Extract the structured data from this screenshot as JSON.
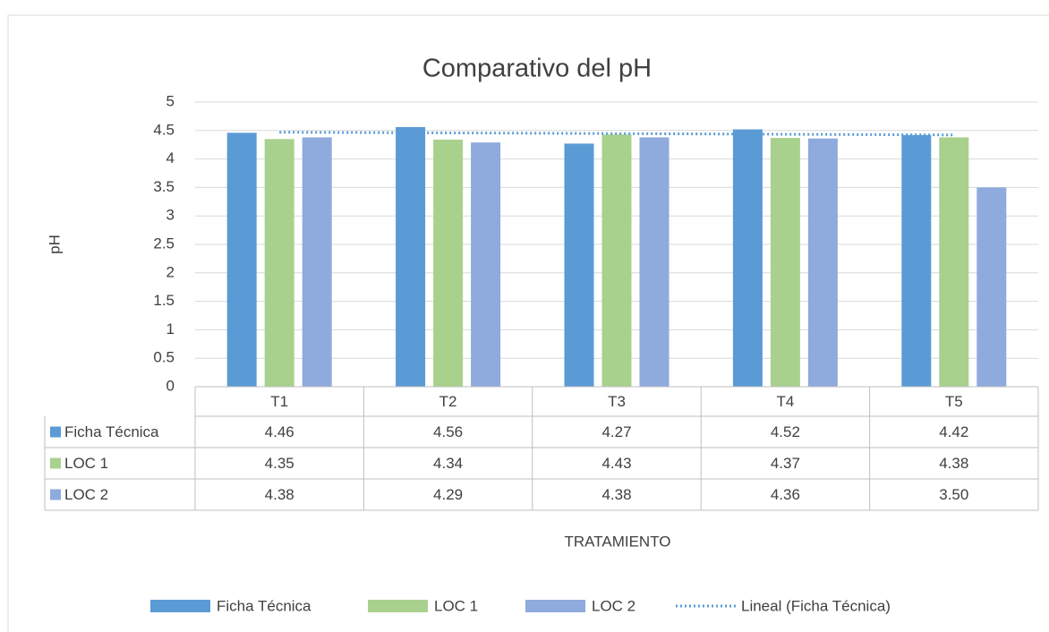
{
  "chart_data": {
    "type": "bar",
    "title": "Comparativo del pH",
    "y_label": "pH",
    "x_label": "TRATAMIENTO",
    "categories": [
      "T1",
      "T2",
      "T3",
      "T4",
      "T5"
    ],
    "series": [
      {
        "name": "Ficha Técnica",
        "color": "#5b9bd5",
        "values": [
          4.46,
          4.56,
          4.27,
          4.52,
          4.42
        ],
        "value_labels": [
          "4.46",
          "4.56",
          "4.27",
          "4.52",
          "4.42"
        ]
      },
      {
        "name": "LOC 1",
        "color": "#a9d18e",
        "values": [
          4.35,
          4.34,
          4.43,
          4.37,
          4.38
        ],
        "value_labels": [
          "4.35",
          "4.34",
          "4.43",
          "4.37",
          "4.38"
        ]
      },
      {
        "name": "LOC 2",
        "color": "#8faadc",
        "values": [
          4.38,
          4.29,
          4.38,
          4.36,
          3.5
        ],
        "value_labels": [
          "4.38",
          "4.29",
          "4.38",
          "4.36",
          "3.50"
        ]
      }
    ],
    "trendline": {
      "name": "Lineal (Ficha Técnica)",
      "type": "linear",
      "series": 0,
      "color": "#5b9bd5"
    },
    "ylim": [
      0,
      5
    ],
    "yticks": [
      0,
      0.5,
      1,
      1.5,
      2,
      2.5,
      3,
      3.5,
      4,
      4.5,
      5
    ],
    "grid": true,
    "legend": "bottom"
  }
}
